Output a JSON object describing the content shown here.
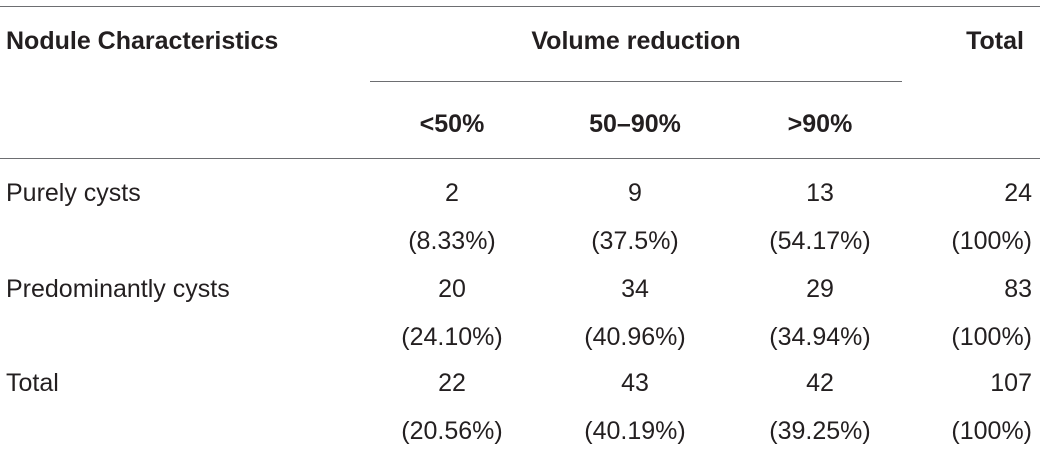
{
  "table": {
    "header": {
      "characteristics": "Nodule Characteristics",
      "volume_reduction": "Volume reduction",
      "total": "Total",
      "sub": [
        "<50%",
        "50–90%",
        ">90%"
      ]
    },
    "rows": [
      {
        "label": "Purely cysts",
        "counts": [
          "2",
          "9",
          "13",
          "24"
        ],
        "percents": [
          "(8.33%)",
          "(37.5%)",
          "(54.17%)",
          "(100%)"
        ]
      },
      {
        "label": "Predominantly cysts",
        "counts": [
          "20",
          "34",
          "29",
          "83"
        ],
        "percents": [
          "(24.10%)",
          "(40.96%)",
          "(34.94%)",
          "(100%)"
        ]
      },
      {
        "label": "Total",
        "counts": [
          "22",
          "43",
          "42",
          "107"
        ],
        "percents": [
          "(20.56%)",
          "(40.19%)",
          "(39.25%)",
          "(100%)"
        ]
      }
    ]
  }
}
